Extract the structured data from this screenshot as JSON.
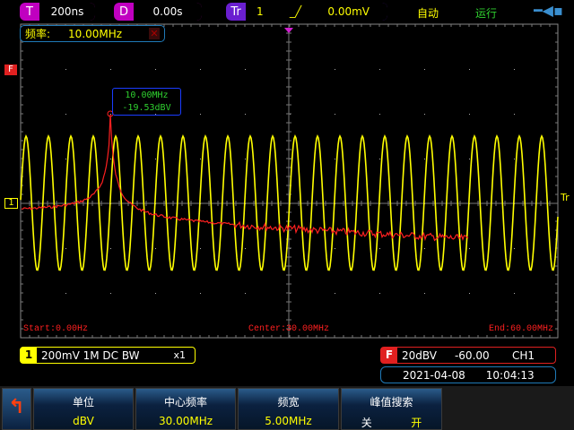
{
  "topbar": {
    "timebase": {
      "tag": "T",
      "value": "200ns"
    },
    "delay": {
      "tag": "D",
      "value": "0.00s"
    },
    "trigger": {
      "tag": "Tr",
      "source": "1",
      "edge_icon": "rising-edge-icon",
      "level": "0.00mV"
    },
    "mode": "自动",
    "run_state": "运行",
    "usb_icon": "usb-icon"
  },
  "freq_counter": {
    "label": "频率:",
    "value": "10.00MHz"
  },
  "markers": {
    "fft": "F",
    "channel": "1",
    "trigger": "Tr"
  },
  "peak_label": {
    "freq": "10.00MHz",
    "level": "-19.53dBV"
  },
  "fft_axis": {
    "start": "Start:0.00Hz",
    "center": "Center:30.00MHz",
    "end": "End:60.00MHz"
  },
  "channel1": {
    "num": "1",
    "settings": "200mV  1M  DC BW",
    "probe": "x1"
  },
  "fft_info": {
    "tag": "F",
    "scale": "20dBV",
    "offset": "-60.00",
    "source": "CH1"
  },
  "datetime": {
    "date": "2021-04-08",
    "time": "10:04:13"
  },
  "softkeys": [
    {
      "title": "单位",
      "value": "dBV"
    },
    {
      "title": "中心频率",
      "value": "30.00MHz"
    },
    {
      "title": "频宽",
      "value": "5.00MHz"
    },
    {
      "title": "峰值搜索",
      "off": "关",
      "on": "开"
    }
  ],
  "colors": {
    "ch1": "#ffff00",
    "fft": "#ff2020",
    "timebase": "#c000c0",
    "trigger": "#6a1fd0",
    "accent": "#1f7ab8"
  }
}
